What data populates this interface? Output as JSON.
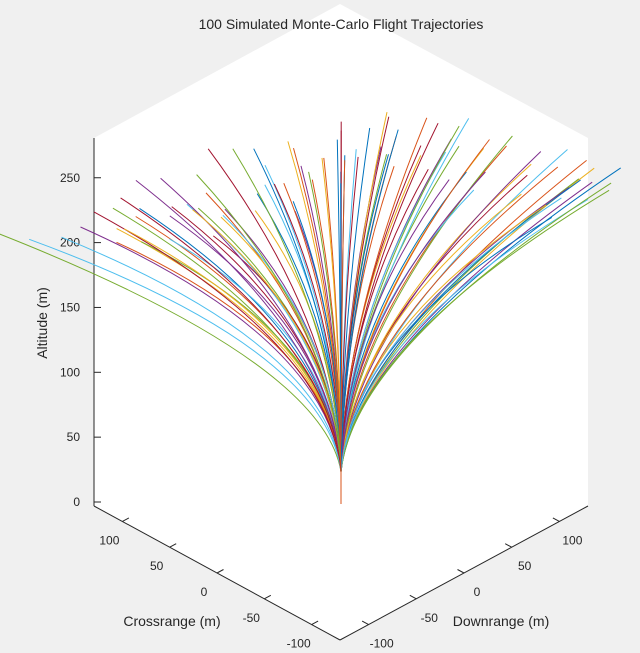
{
  "chart_data": {
    "type": "line",
    "projection": "3d",
    "title": "100 Simulated Monte-Carlo Flight Trajectories",
    "xlabel": "Downrange (m)",
    "ylabel": "Crossrange (m)",
    "zlabel": "Altitude (m)",
    "xlim": [
      -130,
      130
    ],
    "ylim": [
      -130,
      130
    ],
    "zlim": [
      0,
      280
    ],
    "xticks": [
      -100,
      -50,
      0,
      50,
      100
    ],
    "yticks": [
      -100,
      -50,
      0,
      50,
      100
    ],
    "zticks": [
      0,
      50,
      100,
      150,
      200,
      250
    ],
    "grid": false,
    "launch_point": [
      0,
      0,
      0
    ],
    "series_count": 100,
    "colors": [
      "#0072BD",
      "#D95319",
      "#EDB120",
      "#7E2F8E",
      "#77AC30",
      "#4DBEEE",
      "#A2142F"
    ],
    "endpoints": [
      {
        "x": 100,
        "y": -47,
        "z": 217
      },
      {
        "x": 94,
        "y": -35,
        "z": 218
      },
      {
        "x": 96,
        "y": -37,
        "z": 212
      },
      {
        "x": 90,
        "y": -42,
        "z": 210
      },
      {
        "x": 85,
        "y": -40,
        "z": 215
      },
      {
        "x": 88,
        "y": -31,
        "z": 228
      },
      {
        "x": 55,
        "y": -43,
        "z": 244
      },
      {
        "x": 46,
        "y": -65,
        "z": 236
      },
      {
        "x": 58,
        "y": -29,
        "z": 253
      },
      {
        "x": 49,
        "y": -26,
        "z": 256
      },
      {
        "x": 40,
        "y": -18,
        "z": 264
      },
      {
        "x": 41,
        "y": -21,
        "z": 260
      },
      {
        "x": 34,
        "y": -21,
        "z": 261
      },
      {
        "x": 41,
        "y": -10,
        "z": 269
      },
      {
        "x": 33,
        "y": -33,
        "z": 256
      },
      {
        "x": 23,
        "y": -6,
        "z": 270
      },
      {
        "x": 24,
        "y": -18,
        "z": 264
      },
      {
        "x": 14,
        "y": -7,
        "z": 270
      },
      {
        "x": 13,
        "y": -11,
        "z": 268
      },
      {
        "x": 5,
        "y": -3,
        "z": 272
      },
      {
        "x": 3,
        "y": -6,
        "z": 270
      },
      {
        "x": -1,
        "y": -3,
        "z": 272
      },
      {
        "x": -9,
        "y": 0,
        "z": 274
      },
      {
        "x": -7,
        "y": 3,
        "z": 270
      },
      {
        "x": -17,
        "y": 4,
        "z": 271
      },
      {
        "x": -16,
        "y": 1,
        "z": 268
      },
      {
        "x": -23,
        "y": 17,
        "z": 266
      },
      {
        "x": -29,
        "y": 6,
        "z": 265
      },
      {
        "x": -35,
        "y": 9,
        "z": 260
      },
      {
        "x": -40,
        "y": 31,
        "z": 247
      },
      {
        "x": -54,
        "y": 9,
        "z": 257
      },
      {
        "x": -46,
        "y": 15,
        "z": 252
      },
      {
        "x": -50,
        "y": 25,
        "z": 248
      },
      {
        "x": -53,
        "y": 28,
        "z": 251
      },
      {
        "x": -55,
        "y": 34,
        "z": 246
      },
      {
        "x": -60,
        "y": 46,
        "z": 239
      },
      {
        "x": -63,
        "y": 45,
        "z": 236
      },
      {
        "x": -72,
        "y": 46,
        "z": 233
      },
      {
        "x": -82,
        "y": 55,
        "z": 235
      },
      {
        "x": -99,
        "y": 117,
        "z": 214
      },
      {
        "x": -30,
        "y": 10,
        "z": 262
      },
      {
        "x": 30,
        "y": -12,
        "z": 262
      },
      {
        "x": 20,
        "y": 5,
        "z": 270
      },
      {
        "x": -20,
        "y": -5,
        "z": 270
      },
      {
        "x": 60,
        "y": -40,
        "z": 246
      },
      {
        "x": -60,
        "y": 30,
        "z": 246
      },
      {
        "x": 70,
        "y": -20,
        "z": 244
      },
      {
        "x": -70,
        "y": 20,
        "z": 244
      },
      {
        "x": 10,
        "y": 10,
        "z": 272
      },
      {
        "x": -10,
        "y": -10,
        "z": 272
      },
      {
        "x": 45,
        "y": 0,
        "z": 262
      },
      {
        "x": -45,
        "y": 0,
        "z": 262
      },
      {
        "x": 65,
        "y": -55,
        "z": 236
      },
      {
        "x": -65,
        "y": 55,
        "z": 236
      },
      {
        "x": 25,
        "y": -45,
        "z": 258
      },
      {
        "x": -25,
        "y": 45,
        "z": 258
      },
      {
        "x": 78,
        "y": -48,
        "z": 226
      },
      {
        "x": -78,
        "y": 40,
        "z": 232
      },
      {
        "x": 36,
        "y": 12,
        "z": 264
      },
      {
        "x": -36,
        "y": -12,
        "z": 264
      },
      {
        "x": 52,
        "y": -10,
        "z": 258
      },
      {
        "x": -52,
        "y": 10,
        "z": 256
      },
      {
        "x": 18,
        "y": -28,
        "z": 266
      },
      {
        "x": -18,
        "y": 28,
        "z": 266
      },
      {
        "x": 8,
        "y": -20,
        "z": 270
      },
      {
        "x": -8,
        "y": 20,
        "z": 270
      },
      {
        "x": 75,
        "y": -30,
        "z": 236
      },
      {
        "x": -75,
        "y": 30,
        "z": 238
      },
      {
        "x": 62,
        "y": -5,
        "z": 252
      },
      {
        "x": -62,
        "y": 5,
        "z": 252
      },
      {
        "x": 28,
        "y": -2,
        "z": 268
      },
      {
        "x": -28,
        "y": 2,
        "z": 268
      },
      {
        "x": 43,
        "y": -52,
        "z": 246
      },
      {
        "x": -43,
        "y": 52,
        "z": 244
      },
      {
        "x": 83,
        "y": -58,
        "z": 222
      },
      {
        "x": -85,
        "y": 62,
        "z": 224
      },
      {
        "x": 15,
        "y": 15,
        "z": 271
      },
      {
        "x": -15,
        "y": -15,
        "z": 271
      },
      {
        "x": 56,
        "y": -22,
        "z": 254
      },
      {
        "x": -56,
        "y": 22,
        "z": 254
      },
      {
        "x": 38,
        "y": -38,
        "z": 256
      },
      {
        "x": -38,
        "y": 38,
        "z": 254
      },
      {
        "x": 68,
        "y": -62,
        "z": 230
      },
      {
        "x": -68,
        "y": 62,
        "z": 230
      },
      {
        "x": 4,
        "y": 6,
        "z": 273
      },
      {
        "x": -4,
        "y": -6,
        "z": 273
      },
      {
        "x": 48,
        "y": -60,
        "z": 240
      },
      {
        "x": -48,
        "y": 60,
        "z": 240
      },
      {
        "x": 92,
        "y": -50,
        "z": 214
      },
      {
        "x": -92,
        "y": 72,
        "z": 220
      },
      {
        "x": 33,
        "y": 8,
        "z": 266
      },
      {
        "x": -33,
        "y": -8,
        "z": 266
      },
      {
        "x": 72,
        "y": -42,
        "z": 236
      },
      {
        "x": -72,
        "y": 42,
        "z": 236
      },
      {
        "x": 21,
        "y": -36,
        "z": 262
      },
      {
        "x": -21,
        "y": 36,
        "z": 262
      },
      {
        "x": 58,
        "y": -58,
        "z": 236
      },
      {
        "x": -58,
        "y": 58,
        "z": 236
      },
      {
        "x": 11,
        "y": -14,
        "z": 272
      },
      {
        "x": -11,
        "y": 14,
        "z": 272
      }
    ]
  }
}
